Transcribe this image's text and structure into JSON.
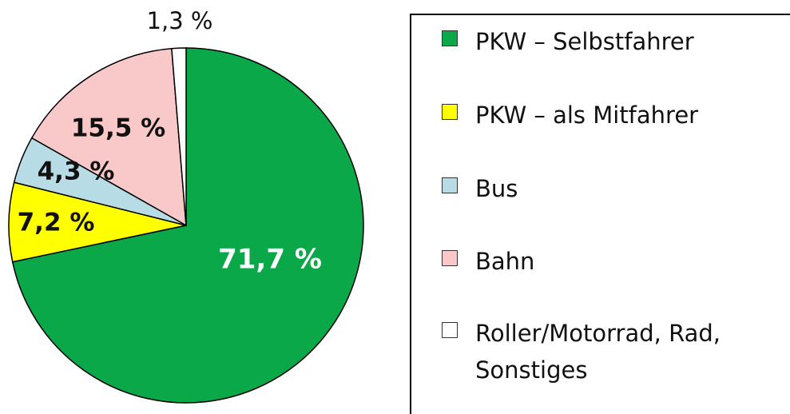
{
  "chart_data": {
    "type": "pie",
    "categories": [
      "PKW – Selbstfahrer",
      "PKW – als Mitfahrer",
      "Bus",
      "Bahn",
      "Roller/Motorrad, Rad, Sonstiges"
    ],
    "values": [
      71.7,
      7.2,
      4.3,
      15.5,
      1.3
    ],
    "value_labels": [
      "71,7 %",
      "7,2 %",
      "4,3 %",
      "15,5 %",
      "1,3 %"
    ],
    "colors": [
      "#0ba84a",
      "#ffff00",
      "#b7dce6",
      "#f9c8c8",
      "#ffffff"
    ],
    "legend": "right"
  }
}
